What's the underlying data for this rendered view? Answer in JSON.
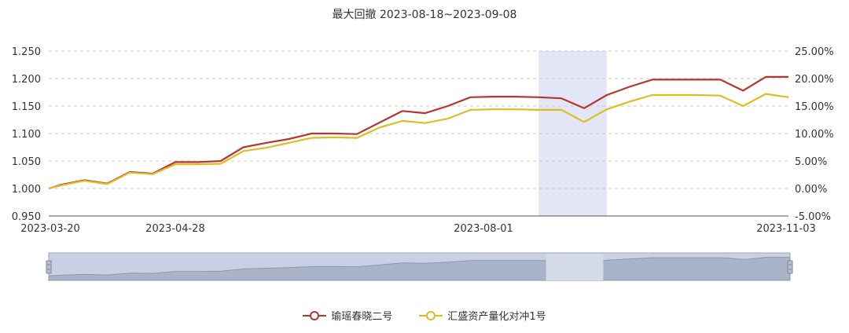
{
  "title": "最大回撤    2023-08-18~2023-09-08",
  "colors": {
    "series1": "#b5362c",
    "series2": "#e0bc23",
    "highlight": "#e3e6f7"
  },
  "chart_data": {
    "type": "line",
    "title": "最大回撤    2023-08-18~2023-09-08",
    "xlabel": "",
    "ylabel": "",
    "y_left": {
      "min": 0.95,
      "max": 1.25,
      "ticks": [
        "1.250",
        "1.200",
        "1.150",
        "1.100",
        "1.050",
        "1.000",
        "0.950"
      ]
    },
    "y_right": {
      "min": -5,
      "max": 25,
      "ticks": [
        "25.00%",
        "20.00%",
        "15.00%",
        "10.00%",
        "5.00%",
        "0.00%",
        "-5.00%"
      ]
    },
    "x_ticks": [
      "2023-03-20",
      "2023-04-28",
      "2023-08-01",
      "2023-11-03"
    ],
    "x_range": [
      "2023-03-20",
      "2023-11-03"
    ],
    "highlight_range": [
      "2023-08-18",
      "2023-09-08"
    ],
    "grid": "horizontal dashed",
    "legend_position": "bottom",
    "series": [
      {
        "name": "瑜瑶春晓二号",
        "x": [
          "2023-03-20",
          "2023-03-24",
          "2023-03-31",
          "2023-04-07",
          "2023-04-14",
          "2023-04-21",
          "2023-04-28",
          "2023-05-05",
          "2023-05-12",
          "2023-05-19",
          "2023-05-26",
          "2023-06-02",
          "2023-06-09",
          "2023-06-16",
          "2023-06-23",
          "2023-06-30",
          "2023-07-07",
          "2023-07-14",
          "2023-07-21",
          "2023-07-28",
          "2023-08-04",
          "2023-08-11",
          "2023-08-18",
          "2023-08-25",
          "2023-09-01",
          "2023-09-08",
          "2023-09-15",
          "2023-09-22",
          "2023-10-06",
          "2023-10-13",
          "2023-10-20",
          "2023-10-27",
          "2023-11-03"
        ],
        "values": [
          1.0,
          1.007,
          1.015,
          1.009,
          1.03,
          1.027,
          1.048,
          1.048,
          1.05,
          1.075,
          1.083,
          1.09,
          1.1,
          1.1,
          1.099,
          1.12,
          1.141,
          1.137,
          1.15,
          1.166,
          1.167,
          1.167,
          1.166,
          1.164,
          1.146,
          1.17,
          1.185,
          1.198,
          1.198,
          1.198,
          1.178,
          1.203,
          1.203
        ]
      },
      {
        "name": "汇盛资产量化对冲1号",
        "x": [
          "2023-03-20",
          "2023-03-24",
          "2023-03-31",
          "2023-04-07",
          "2023-04-14",
          "2023-04-21",
          "2023-04-28",
          "2023-05-05",
          "2023-05-12",
          "2023-05-19",
          "2023-05-26",
          "2023-06-02",
          "2023-06-09",
          "2023-06-16",
          "2023-06-23",
          "2023-06-30",
          "2023-07-07",
          "2023-07-14",
          "2023-07-21",
          "2023-07-28",
          "2023-08-04",
          "2023-08-11",
          "2023-08-18",
          "2023-08-25",
          "2023-09-01",
          "2023-09-08",
          "2023-09-15",
          "2023-09-22",
          "2023-10-06",
          "2023-10-13",
          "2023-10-20",
          "2023-10-27",
          "2023-11-03"
        ],
        "values": [
          1.0,
          1.006,
          1.014,
          1.008,
          1.029,
          1.026,
          1.044,
          1.044,
          1.045,
          1.068,
          1.074,
          1.083,
          1.092,
          1.093,
          1.092,
          1.111,
          1.123,
          1.119,
          1.127,
          1.143,
          1.144,
          1.144,
          1.143,
          1.143,
          1.121,
          1.144,
          1.158,
          1.17,
          1.17,
          1.169,
          1.15,
          1.172,
          1.166
        ]
      }
    ]
  },
  "legend": [
    "瑜瑶春晓二号",
    "汇盛资产量化对冲1号"
  ]
}
